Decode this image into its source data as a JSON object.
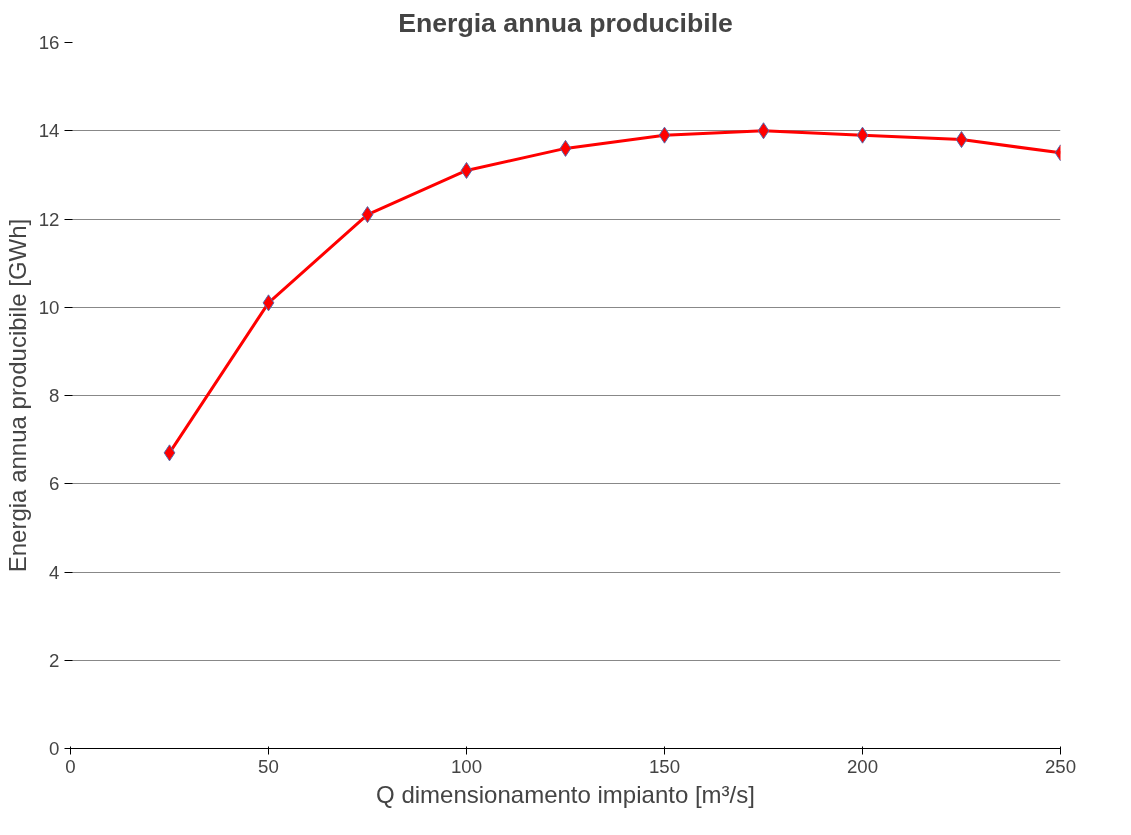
{
  "chart_data": {
    "type": "line",
    "title": "Energia annua producibile",
    "xlabel": "Q dimensionamento impianto [m³/s]",
    "ylabel": "Energia annua producibile [GWh]",
    "x": [
      25,
      50,
      75,
      100,
      125,
      150,
      175,
      200,
      225,
      250
    ],
    "series": [
      {
        "color": "#ff0000",
        "values": [
          6.7,
          10.1,
          12.1,
          13.1,
          13.6,
          13.9,
          14.0,
          13.9,
          13.8,
          13.5
        ]
      }
    ],
    "xlim": [
      0,
      250
    ],
    "xticks": [
      0,
      50,
      100,
      150,
      200,
      250
    ],
    "ylim": [
      0,
      16
    ],
    "yticks": [
      0,
      2,
      4,
      6,
      8,
      10,
      12,
      14,
      16
    ],
    "grid": "y",
    "marker": "diamond",
    "line_style": "solid"
  }
}
